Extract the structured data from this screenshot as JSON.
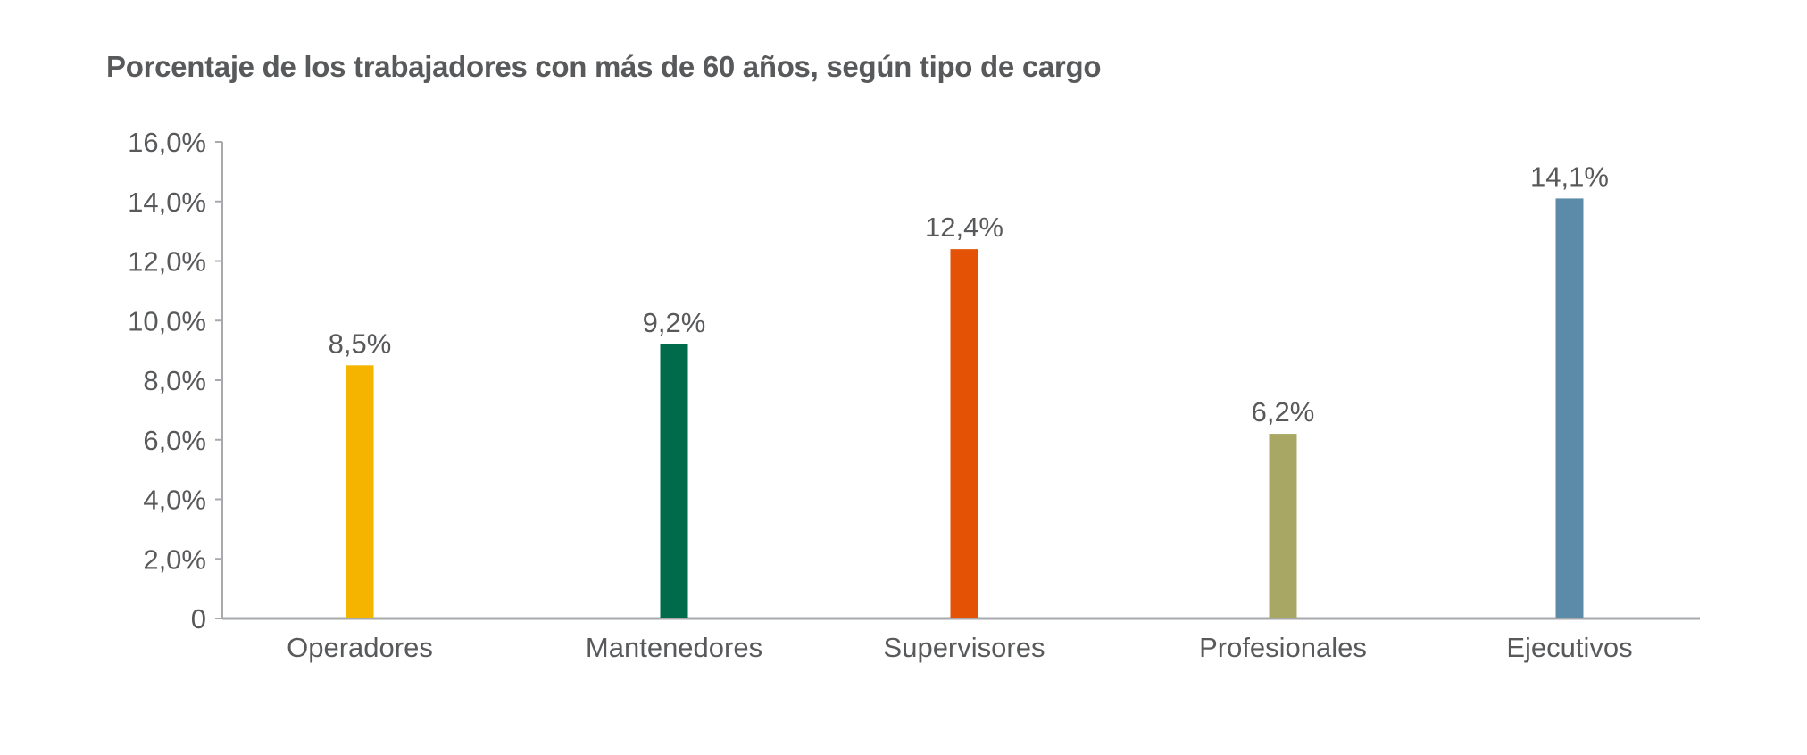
{
  "chart_data": {
    "type": "bar",
    "title": "Porcentaje de los trabajadores con más de 60 años, según tipo de cargo",
    "xlabel": "",
    "ylabel": "",
    "categories": [
      "Operadores",
      "Mantenedores",
      "Supervisores",
      "Profesionales",
      "Ejecutivos"
    ],
    "values": [
      8.5,
      9.2,
      12.4,
      6.2,
      14.1
    ],
    "data_labels": [
      "8,5%",
      "9,2%",
      "12,4%",
      "6,2%",
      "14,1%"
    ],
    "colors": [
      "#F5B400",
      "#006B4A",
      "#E35205",
      "#A8A764",
      "#5B8BA8"
    ],
    "ylim": [
      0,
      16
    ],
    "yticks": [
      0,
      2,
      4,
      6,
      8,
      10,
      12,
      14,
      16
    ],
    "ytick_labels": [
      "0",
      "2,0%",
      "4,0%",
      "6,0%",
      "8,0%",
      "10,0%",
      "12,0%",
      "14,0%",
      "16,0%"
    ],
    "grid": false,
    "legend": "none"
  }
}
